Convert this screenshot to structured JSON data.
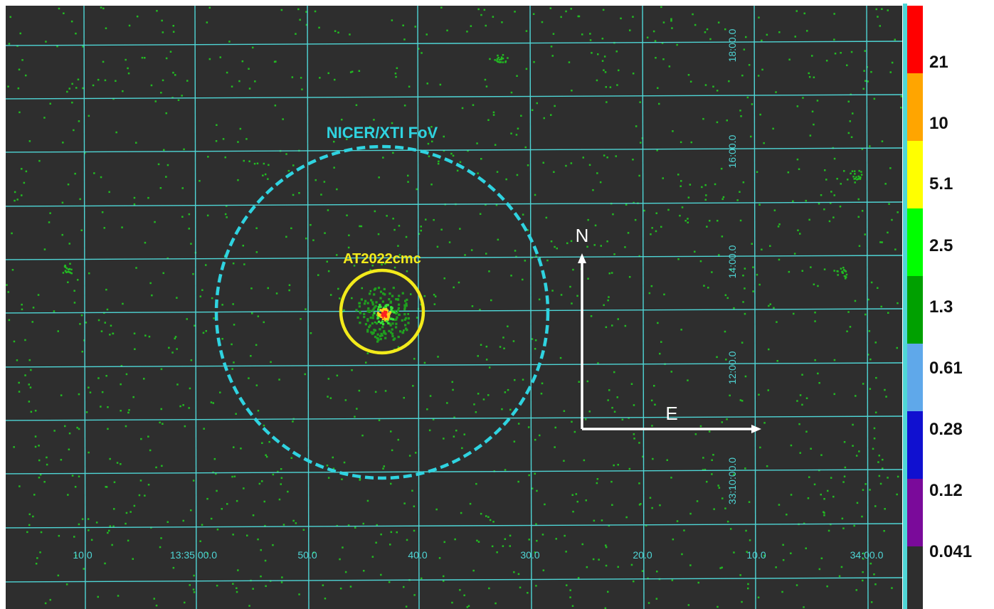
{
  "image": {
    "background_color": "#2e2e2e",
    "grid_color": "#4fd6d6",
    "event_color": "#22bb22"
  },
  "annotations": {
    "fov_label": "NICER/XTI FoV",
    "source_label": "AT2022cmc",
    "north_label": "N",
    "east_label": "E",
    "fov_color": "#2fd3e0",
    "source_color": "#f2ea1b",
    "arrow_color": "#ffffff"
  },
  "ra_ticks": [
    "10.0",
    "13:35:00.0",
    "50.0",
    "40.0",
    "30.0",
    "20.0",
    "10.0",
    "34:00.0"
  ],
  "dec_ticks": [
    "18:00.0",
    "16:00.0",
    "14:00.0",
    "12:00.0",
    "33:10:00.0"
  ],
  "colorbar": {
    "labels": [
      "21",
      "10",
      "5.1",
      "2.5",
      "1.3",
      "0.61",
      "0.28",
      "0.12",
      "0.041"
    ],
    "colors": [
      "#ff0000",
      "#ffa500",
      "#ffff00",
      "#00ff00",
      "#00a000",
      "#5fa8ea",
      "#1010d0",
      "#7a0a9a",
      "#2e2e2e"
    ]
  }
}
